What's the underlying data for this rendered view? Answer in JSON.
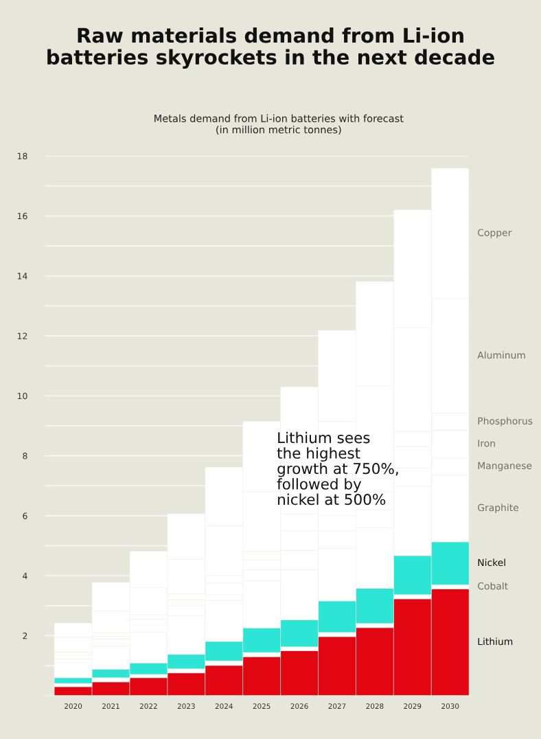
{
  "chart_data": {
    "type": "bar",
    "stacked": true,
    "title": "Raw materials demand from Li-ion\nbatteries skyrockets in the next decade",
    "subtitle": "Metals demand from Li-ion batteries with forecast\n(in million metric tonnes)",
    "categories": [
      "2020",
      "2021",
      "2022",
      "2023",
      "2024",
      "2025",
      "2026",
      "2027",
      "2028",
      "2029",
      "2030"
    ],
    "series": [
      {
        "name": "Lithium",
        "color": "#e20613",
        "values": [
          0.3,
          0.46,
          0.6,
          0.76,
          1.01,
          1.3,
          1.5,
          1.97,
          2.27,
          3.23,
          3.56
        ]
      },
      {
        "name": "Cobalt",
        "color": "#ffffff",
        "values": [
          0.11,
          0.14,
          0.11,
          0.14,
          0.15,
          0.14,
          0.13,
          0.14,
          0.14,
          0.14,
          0.14
        ]
      },
      {
        "name": "Nickel",
        "color": "#2ce5d4",
        "values": [
          0.19,
          0.28,
          0.38,
          0.48,
          0.65,
          0.82,
          0.9,
          1.05,
          1.17,
          1.3,
          1.43
        ]
      },
      {
        "name": "Graphite",
        "color": "#ffffff",
        "values": [
          0.5,
          0.78,
          1.04,
          1.29,
          1.37,
          1.58,
          1.67,
          1.76,
          2.02,
          2.31,
          2.23
        ]
      },
      {
        "name": "Manganese",
        "color": "#ffffff",
        "values": [
          0.13,
          0.23,
          0.23,
          0.33,
          0.19,
          0.36,
          0.65,
          0.58,
          0.6,
          0.62,
          0.57
        ]
      },
      {
        "name": "Iron",
        "color": "#ffffff",
        "values": [
          0.12,
          0.1,
          0.19,
          0.2,
          0.39,
          0.33,
          0.65,
          0.5,
          0.6,
          0.71,
          0.92
        ]
      },
      {
        "name": "Phosphorus",
        "color": "#ffffff",
        "values": [
          0.1,
          0.11,
          0.15,
          0.2,
          0.25,
          0.27,
          0.56,
          0.48,
          0.44,
          0.5,
          0.57
        ]
      },
      {
        "name": "Aluminum",
        "color": "#ffffff",
        "values": [
          0.5,
          0.73,
          0.9,
          1.15,
          1.66,
          2.01,
          1.84,
          2.67,
          3.09,
          3.47,
          3.82
        ]
      },
      {
        "name": "Copper",
        "color": "#ffffff",
        "values": [
          0.47,
          0.95,
          1.22,
          1.52,
          1.95,
          2.34,
          2.4,
          3.04,
          3.48,
          3.92,
          4.35
        ]
      }
    ],
    "ylim": [
      0,
      18
    ],
    "yticks": [
      {
        "value": 1,
        "label": null
      },
      2,
      {
        "value": 3,
        "label": null
      },
      4,
      {
        "value": 5,
        "label": null
      },
      6,
      {
        "value": 7,
        "label": null
      },
      8,
      {
        "value": 9,
        "label": null
      },
      10,
      {
        "value": 11,
        "label": null
      },
      12,
      {
        "value": 13,
        "label": null
      },
      14,
      {
        "value": 15,
        "label": null
      },
      16,
      {
        "value": 17,
        "label": null
      },
      18
    ],
    "grid": "y",
    "legend": false,
    "annotations": [
      "Lithium sees\nthe highest\ngrowth at 750%,\nfollowed by\nnickel at 500%"
    ]
  }
}
